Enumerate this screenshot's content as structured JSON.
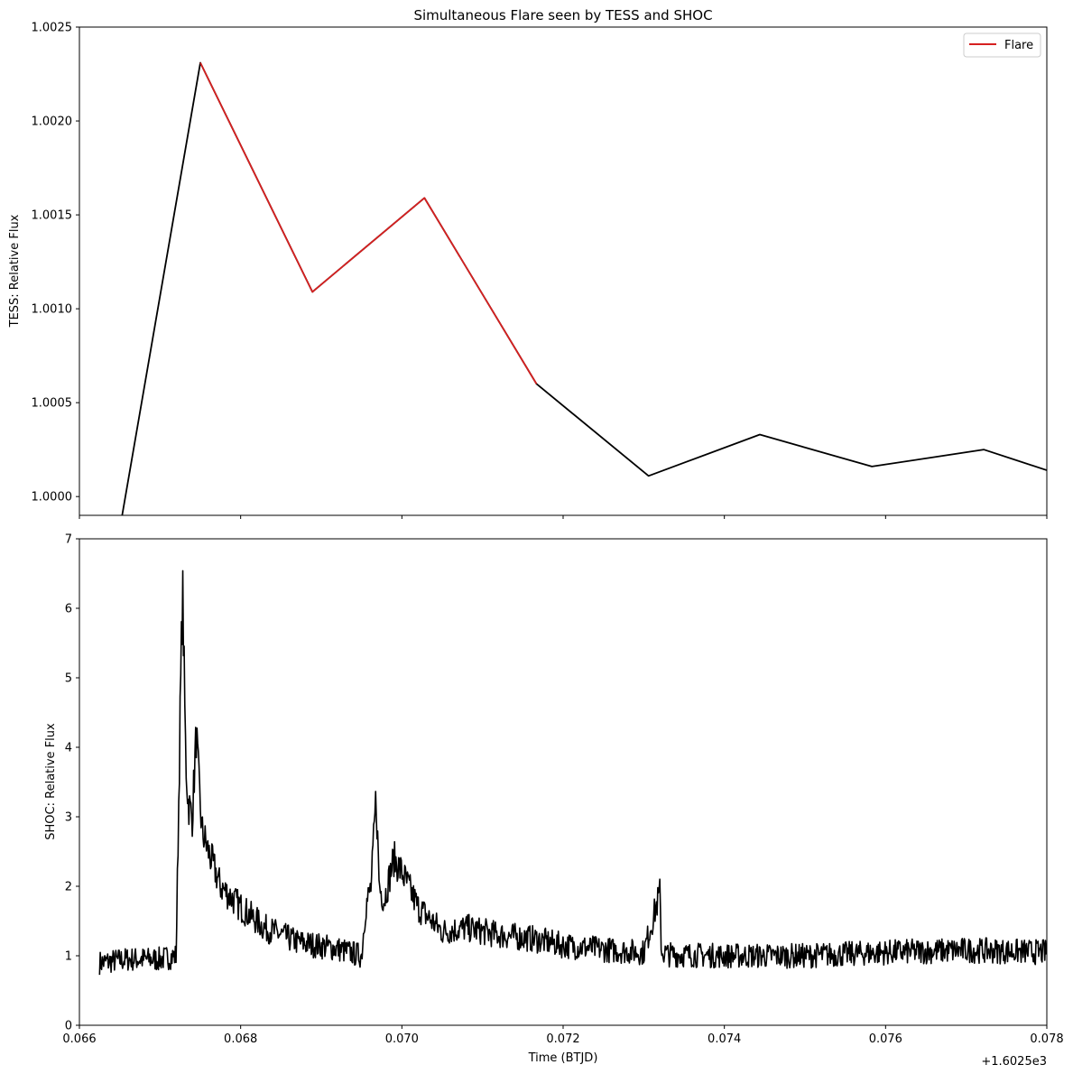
{
  "chart_data": [
    {
      "type": "line",
      "title": "Simultaneous Flare seen by TESS and SHOC",
      "ylabel": "TESS: Relative Flux",
      "xlim": [
        0.066,
        0.078
      ],
      "ylim": [
        0.9999,
        1.0025
      ],
      "yticks": [
        1.0,
        1.0005,
        1.001,
        1.0015,
        1.002,
        1.0025
      ],
      "ytick_labels": [
        "1.0000",
        "1.0005",
        "1.0010",
        "1.0015",
        "1.0020",
        "1.0025"
      ],
      "xticks": [
        0.066,
        0.068,
        0.07,
        0.072,
        0.074,
        0.076,
        0.078
      ],
      "grid": false,
      "legend": {
        "placement": "top-right",
        "entries": [
          "Flare"
        ]
      },
      "series": [
        {
          "color": "#000000",
          "x": [
            0.06653,
            0.0675,
            0.06889,
            0.07028,
            0.07167,
            0.07306,
            0.07444,
            0.07583,
            0.07722,
            0.078
          ],
          "y": [
            0.9999,
            1.00231,
            1.00109,
            1.00159,
            1.0006,
            1.00011,
            1.00033,
            1.00016,
            1.00025,
            1.00014
          ]
        },
        {
          "name": "Flare",
          "color": "#d62020",
          "x": [
            0.0675,
            0.06889,
            0.07028,
            0.07167
          ],
          "y": [
            1.00231,
            1.00109,
            1.00159,
            1.0006
          ]
        }
      ]
    },
    {
      "type": "line",
      "xlabel": "Time (BTJD)",
      "ylabel": "SHOC: Relative Flux",
      "offset_label": "+1.6025e3",
      "xlim": [
        0.066,
        0.078
      ],
      "ylim": [
        0,
        7
      ],
      "yticks": [
        0,
        1,
        2,
        3,
        4,
        5,
        6,
        7
      ],
      "ytick_labels": [
        "0",
        "1",
        "2",
        "3",
        "4",
        "5",
        "6",
        "7"
      ],
      "xticks": [
        0.066,
        0.068,
        0.07,
        0.072,
        0.074,
        0.076,
        0.078
      ],
      "xtick_labels": [
        "0.066",
        "0.068",
        "0.070",
        "0.072",
        "0.074",
        "0.076",
        "0.078"
      ],
      "grid": false,
      "series": [
        {
          "color": "#000000",
          "x": [
            0.06625,
            0.0666,
            0.067,
            0.0672,
            0.06725,
            0.06728,
            0.0673,
            0.06732,
            0.06735,
            0.0674,
            0.06745,
            0.06748,
            0.06752,
            0.0676,
            0.06775,
            0.068,
            0.0683,
            0.0687,
            0.0692,
            0.0695,
            0.06955,
            0.06962,
            0.06968,
            0.06972,
            0.06978,
            0.0699,
            0.07,
            0.0702,
            0.0705,
            0.0708,
            0.0712,
            0.0716,
            0.072,
            0.0726,
            0.073,
            0.0732,
            0.07322,
            0.0733,
            0.074,
            0.075,
            0.076,
            0.077,
            0.078
          ],
          "y": [
            0.9,
            0.95,
            0.95,
            1.0,
            4.5,
            6.3,
            5.0,
            3.8,
            3.2,
            3.0,
            4.2,
            3.5,
            2.8,
            2.5,
            2.0,
            1.7,
            1.4,
            1.2,
            1.1,
            1.0,
            1.7,
            2.0,
            3.3,
            2.0,
            1.8,
            2.4,
            2.2,
            1.7,
            1.35,
            1.4,
            1.3,
            1.25,
            1.15,
            1.08,
            1.05,
            1.9,
            1.05,
            1.02,
            1.0,
            1.0,
            1.05,
            1.08,
            1.05
          ]
        }
      ]
    }
  ]
}
